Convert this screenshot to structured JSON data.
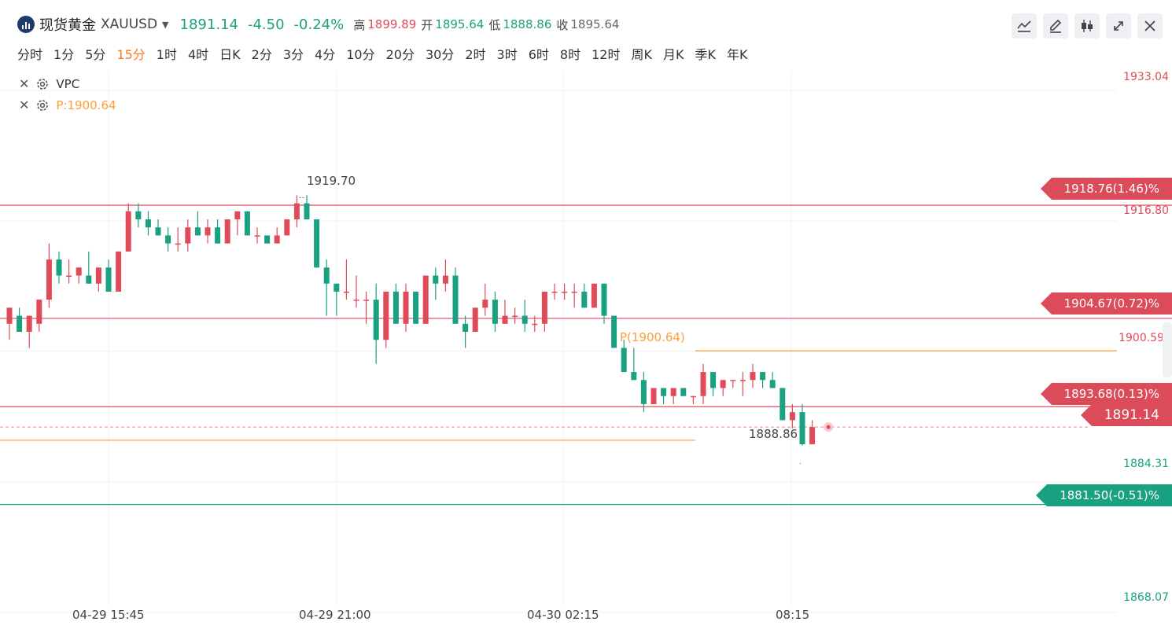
{
  "header": {
    "name": "现货黄金",
    "symbol": "XAUUSD",
    "caret": "▼",
    "price": "1891.14",
    "change": "-4.50",
    "change_pct": "-0.24%",
    "high_label": "高",
    "high": "1899.89",
    "open_label": "开",
    "open": "1895.64",
    "low_label": "低",
    "low": "1888.86",
    "close_label": "收",
    "close": "1895.64"
  },
  "tabs": [
    {
      "label": "分时"
    },
    {
      "label": "1分"
    },
    {
      "label": "5分"
    },
    {
      "label": "15分",
      "active": true
    },
    {
      "label": "1时"
    },
    {
      "label": "4时"
    },
    {
      "label": "日K"
    },
    {
      "label": "2分"
    },
    {
      "label": "3分"
    },
    {
      "label": "4分"
    },
    {
      "label": "10分"
    },
    {
      "label": "20分"
    },
    {
      "label": "30分"
    },
    {
      "label": "2时"
    },
    {
      "label": "3时"
    },
    {
      "label": "6时"
    },
    {
      "label": "8时"
    },
    {
      "label": "12时"
    },
    {
      "label": "周K"
    },
    {
      "label": "月K"
    },
    {
      "label": "季K"
    },
    {
      "label": "年K"
    }
  ],
  "toolbar": {
    "icons": [
      "line-chart-icon",
      "pencil-icon",
      "candlestick-icon",
      "expand-icon",
      "close-icon"
    ]
  },
  "indicators": {
    "vpc": "VPC",
    "pivot": "P:1900.64"
  },
  "colors": {
    "up": "#e04b5a",
    "down": "#1aa182",
    "pivot": "#ff9d3a",
    "accent": "#ff7a1a"
  },
  "chart_data": {
    "type": "candlestick",
    "y_range": [
      1866,
      1935
    ],
    "y_ticks": [
      "1933.04",
      "1916.80",
      "1900.59",
      "1884.31",
      "1868.07"
    ],
    "x_ticks": [
      "04-29 15:45",
      "04-29 21:00",
      "04-30 02:15",
      "08:15"
    ],
    "annotations": {
      "max": "1919.70",
      "min": "1888.86",
      "pivot": "P(1900.64)"
    },
    "price_levels": [
      {
        "value": 1918.76,
        "label": "1918.76(1.46)%",
        "color": "red"
      },
      {
        "value": 1904.67,
        "label": "1904.67(0.72)%",
        "color": "red"
      },
      {
        "value": 1893.68,
        "label": "1893.68(0.13)%",
        "color": "red"
      },
      {
        "value": 1881.5,
        "label": "1881.50(-0.51)%",
        "color": "green"
      }
    ],
    "pivot_value": 1900.64,
    "pivot_low_value": 1889.5,
    "last": {
      "value": 1891.14,
      "label": "1891.14"
    },
    "candles": [
      [
        1904,
        1906,
        1902,
        1906
      ],
      [
        1905,
        1906,
        1903,
        1903
      ],
      [
        1903,
        1905,
        1901,
        1905
      ],
      [
        1904,
        1907,
        1903,
        1907
      ],
      [
        1907,
        1914,
        1906,
        1912
      ],
      [
        1912,
        1913,
        1909,
        1910
      ],
      [
        1910,
        1912,
        1909,
        1910
      ],
      [
        1910,
        1911,
        1909,
        1911
      ],
      [
        1910,
        1913,
        1909,
        1909
      ],
      [
        1909,
        1911,
        1908,
        1911
      ],
      [
        1911,
        1912,
        1908,
        1908
      ],
      [
        1908,
        1913,
        1908,
        1913
      ],
      [
        1913,
        1919,
        1913,
        1918
      ],
      [
        1918,
        1919,
        1916,
        1917
      ],
      [
        1917,
        1918,
        1915,
        1916
      ],
      [
        1916,
        1917,
        1915,
        1915
      ],
      [
        1915,
        1916,
        1913,
        1914
      ],
      [
        1914,
        1916,
        1913,
        1914
      ],
      [
        1914,
        1917,
        1913,
        1916
      ],
      [
        1916,
        1918,
        1915,
        1915
      ],
      [
        1915,
        1917,
        1914,
        1916
      ],
      [
        1916,
        1917,
        1914,
        1914
      ],
      [
        1914,
        1917,
        1914,
        1917
      ],
      [
        1917,
        1918,
        1915,
        1918
      ],
      [
        1918,
        1918,
        1915,
        1915
      ],
      [
        1915,
        1916,
        1914,
        1915
      ],
      [
        1915,
        1915,
        1914,
        1914
      ],
      [
        1914,
        1916,
        1914,
        1915
      ],
      [
        1915,
        1917,
        1915,
        1917
      ],
      [
        1917,
        1920,
        1916,
        1919
      ],
      [
        1919,
        1920,
        1917,
        1917
      ],
      [
        1917,
        1917,
        1911,
        1911
      ],
      [
        1911,
        1912,
        1905,
        1909
      ],
      [
        1909,
        1909,
        1905,
        1908
      ],
      [
        1908,
        1912,
        1907,
        1908
      ],
      [
        1907,
        1910,
        1906,
        1907
      ],
      [
        1907,
        1908,
        1904,
        1907
      ],
      [
        1907,
        1909,
        1899,
        1902
      ],
      [
        1902,
        1908,
        1901,
        1908
      ],
      [
        1908,
        1909,
        1904,
        1904
      ],
      [
        1904,
        1909,
        1903,
        1908
      ],
      [
        1908,
        1908,
        1904,
        1904
      ],
      [
        1904,
        1910,
        1904,
        1910
      ],
      [
        1910,
        1911,
        1907,
        1909
      ],
      [
        1909,
        1912,
        1908,
        1910
      ],
      [
        1910,
        1911,
        1904,
        1904
      ],
      [
        1904,
        1905,
        1901,
        1903
      ],
      [
        1903,
        1906,
        1903,
        1906
      ],
      [
        1906,
        1909,
        1905,
        1907
      ],
      [
        1907,
        1908,
        1903,
        1904
      ],
      [
        1904,
        1907,
        1904,
        1905
      ],
      [
        1905,
        1906,
        1904,
        1905
      ],
      [
        1905,
        1907,
        1903,
        1904
      ],
      [
        1904,
        1905,
        1903,
        1904
      ],
      [
        1904,
        1908,
        1903,
        1908
      ],
      [
        1908,
        1909,
        1907,
        1908
      ],
      [
        1908,
        1909,
        1907,
        1908
      ],
      [
        1908,
        1909,
        1906,
        1908
      ],
      [
        1908,
        1909,
        1906,
        1906
      ],
      [
        1906,
        1909,
        1906,
        1909
      ],
      [
        1909,
        1909,
        1904,
        1905
      ],
      [
        1905,
        1905,
        1901,
        1901
      ],
      [
        1901,
        1902,
        1898,
        1898
      ],
      [
        1898,
        1901,
        1897,
        1897
      ],
      [
        1897,
        1898,
        1893,
        1894
      ],
      [
        1894,
        1896,
        1894,
        1896
      ],
      [
        1896,
        1896,
        1894,
        1895
      ],
      [
        1895,
        1896,
        1894,
        1896
      ],
      [
        1896,
        1896,
        1895,
        1895
      ],
      [
        1895,
        1895,
        1894,
        1895
      ],
      [
        1895,
        1899,
        1894,
        1898
      ],
      [
        1898,
        1898,
        1895,
        1896
      ],
      [
        1896,
        1897,
        1895,
        1897
      ],
      [
        1897,
        1897,
        1896,
        1897
      ],
      [
        1897,
        1898,
        1895,
        1897
      ],
      [
        1897,
        1899,
        1896,
        1898
      ],
      [
        1898,
        1898,
        1896,
        1897
      ],
      [
        1897,
        1898,
        1896,
        1896
      ],
      [
        1896,
        1896,
        1892,
        1892
      ],
      [
        1892,
        1894,
        1891,
        1893
      ],
      [
        1893,
        1894,
        1888.86,
        1889
      ],
      [
        1889,
        1892,
        1889,
        1891.14
      ]
    ]
  }
}
